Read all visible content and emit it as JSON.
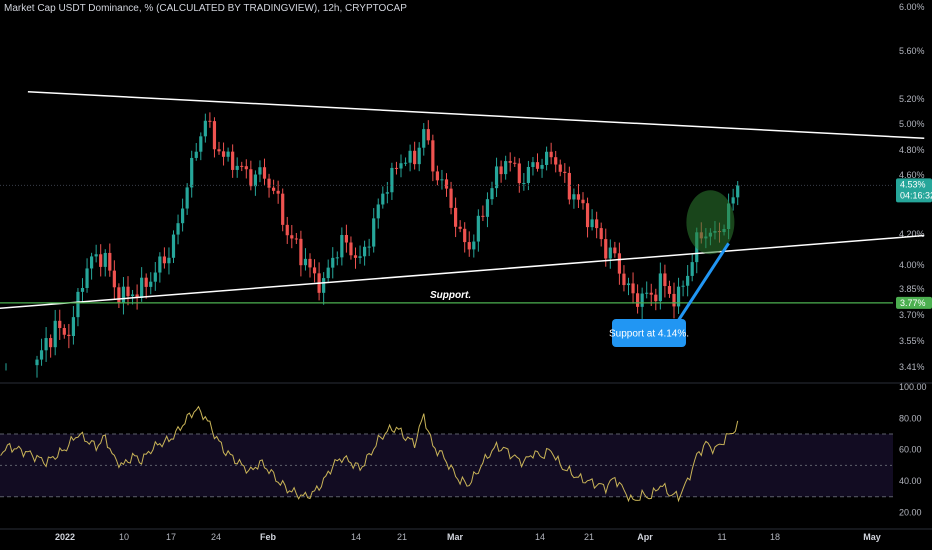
{
  "header": {
    "title": "Market Cap USDT Dominance, % (CALCULATED BY TRADINGVIEW), 12h, CRYPTOCAP"
  },
  "colors": {
    "background": "#000000",
    "up": "#26a69a",
    "down": "#ef5350",
    "rsi_line": "#c9b458",
    "support_line": "#4caf50",
    "trend_line": "#ffffff",
    "callout": "#2196f3",
    "highlight": "#2e7d32"
  },
  "chart_data": [
    {
      "type": "candlestick",
      "ylim": [
        3.32,
        6.0
      ],
      "y_ticks": [
        "6.00%",
        "5.60%",
        "5.20%",
        "5.00%",
        "4.80%",
        "4.60%",
        "4.20%",
        "4.00%",
        "3.85%",
        "3.70%",
        "3.55%",
        "3.41%"
      ],
      "x_ticks": [
        {
          "label": "2022",
          "bold": true
        },
        {
          "label": "10"
        },
        {
          "label": "17"
        },
        {
          "label": "24"
        },
        {
          "label": "Feb",
          "bold": true
        },
        {
          "label": "14"
        },
        {
          "label": "21"
        },
        {
          "label": "Mar",
          "bold": true
        },
        {
          "label": "14"
        },
        {
          "label": "21"
        },
        {
          "label": "Apr",
          "bold": true
        },
        {
          "label": "11"
        },
        {
          "label": "18"
        },
        {
          "label": "May",
          "bold": true
        }
      ],
      "price_path": [
        [
          0,
          3.42
        ],
        [
          2,
          3.55
        ],
        [
          4,
          3.62
        ],
        [
          6,
          3.6
        ],
        [
          8,
          3.64
        ],
        [
          9,
          3.82
        ],
        [
          11,
          3.98
        ],
        [
          13,
          4.06
        ],
        [
          15,
          4.04
        ],
        [
          17,
          3.86
        ],
        [
          19,
          3.8
        ],
        [
          21,
          3.83
        ],
        [
          23,
          3.85
        ],
        [
          25,
          3.92
        ],
        [
          27,
          4.0
        ],
        [
          29,
          4.08
        ],
        [
          31,
          4.25
        ],
        [
          33,
          4.55
        ],
        [
          35,
          4.8
        ],
        [
          37,
          5.05
        ],
        [
          39,
          4.85
        ],
        [
          41,
          4.75
        ],
        [
          43,
          4.7
        ],
        [
          45,
          4.65
        ],
        [
          47,
          4.58
        ],
        [
          49,
          4.62
        ],
        [
          51,
          4.55
        ],
        [
          53,
          4.42
        ],
        [
          55,
          4.2
        ],
        [
          57,
          4.12
        ],
        [
          59,
          4.02
        ],
        [
          61,
          3.92
        ],
        [
          63,
          3.88
        ],
        [
          65,
          4.05
        ],
        [
          67,
          4.15
        ],
        [
          69,
          4.1
        ],
        [
          71,
          4.02
        ],
        [
          73,
          4.18
        ],
        [
          75,
          4.38
        ],
        [
          77,
          4.55
        ],
        [
          79,
          4.65
        ],
        [
          81,
          4.75
        ],
        [
          83,
          4.7
        ],
        [
          85,
          4.98
        ],
        [
          87,
          4.65
        ],
        [
          89,
          4.55
        ],
        [
          91,
          4.4
        ],
        [
          93,
          4.18
        ],
        [
          95,
          4.12
        ],
        [
          97,
          4.25
        ],
        [
          99,
          4.45
        ],
        [
          101,
          4.6
        ],
        [
          103,
          4.72
        ],
        [
          105,
          4.65
        ],
        [
          107,
          4.55
        ],
        [
          109,
          4.7
        ],
        [
          111,
          4.68
        ],
        [
          113,
          4.78
        ],
        [
          115,
          4.62
        ],
        [
          117,
          4.5
        ],
        [
          119,
          4.42
        ],
        [
          121,
          4.32
        ],
        [
          123,
          4.22
        ],
        [
          125,
          4.1
        ],
        [
          127,
          4.05
        ],
        [
          129,
          3.9
        ],
        [
          131,
          3.8
        ],
        [
          133,
          3.81
        ],
        [
          135,
          3.8
        ],
        [
          137,
          3.9
        ],
        [
          139,
          3.82
        ],
        [
          141,
          3.8
        ],
        [
          143,
          3.95
        ],
        [
          145,
          4.15
        ],
        [
          147,
          4.22
        ],
        [
          149,
          4.18
        ],
        [
          151,
          4.28
        ],
        [
          153,
          4.44
        ],
        [
          154,
          4.53
        ]
      ],
      "trend_lines": [
        {
          "name": "resistance",
          "from": [
            -2,
            5.26
          ],
          "to": [
            195,
            4.89
          ]
        },
        {
          "name": "ascending-support",
          "from": [
            -22,
            3.71
          ],
          "to": [
            195,
            4.19
          ]
        }
      ],
      "horizontal_lines": [
        {
          "name": "support",
          "value": 3.77,
          "label": "Support."
        }
      ],
      "annotations": [
        {
          "text": "Support at 4.14%.",
          "value": 4.14
        },
        {
          "text": "Support.",
          "value": 3.77
        }
      ],
      "price_tags": [
        {
          "value": 4.53,
          "label": "4.53%",
          "sublabel": "04:16:32",
          "color": "#26a69a"
        },
        {
          "value": 3.77,
          "label": "3.77%",
          "color": "#4caf50"
        }
      ]
    },
    {
      "type": "line",
      "name": "RSI",
      "ylim": [
        12,
        100
      ],
      "y_ticks": [
        "100.00",
        "80.00",
        "60.00",
        "40.00",
        "20.00"
      ],
      "bands": [
        70,
        50,
        30
      ],
      "rsi_path": [
        [
          -30,
          48
        ],
        [
          -26,
          58
        ],
        [
          -22,
          52
        ],
        [
          -18,
          60
        ],
        [
          -14,
          64
        ],
        [
          -10,
          55
        ],
        [
          -6,
          62
        ],
        [
          -2,
          58
        ],
        [
          2,
          52
        ],
        [
          6,
          60
        ],
        [
          9,
          70
        ],
        [
          11,
          66
        ],
        [
          13,
          62
        ],
        [
          15,
          68
        ],
        [
          17,
          54
        ],
        [
          19,
          50
        ],
        [
          21,
          56
        ],
        [
          23,
          53
        ],
        [
          25,
          60
        ],
        [
          27,
          64
        ],
        [
          29,
          66
        ],
        [
          31,
          72
        ],
        [
          33,
          80
        ],
        [
          35,
          86
        ],
        [
          37,
          81
        ],
        [
          39,
          70
        ],
        [
          41,
          60
        ],
        [
          43,
          55
        ],
        [
          45,
          50
        ],
        [
          47,
          46
        ],
        [
          49,
          52
        ],
        [
          51,
          47
        ],
        [
          53,
          40
        ],
        [
          55,
          35
        ],
        [
          57,
          32
        ],
        [
          59,
          30
        ],
        [
          61,
          33
        ],
        [
          63,
          40
        ],
        [
          65,
          50
        ],
        [
          67,
          55
        ],
        [
          69,
          52
        ],
        [
          71,
          48
        ],
        [
          73,
          56
        ],
        [
          75,
          66
        ],
        [
          77,
          72
        ],
        [
          79,
          74
        ],
        [
          81,
          68
        ],
        [
          83,
          64
        ],
        [
          85,
          82
        ],
        [
          87,
          62
        ],
        [
          89,
          57
        ],
        [
          91,
          48
        ],
        [
          93,
          40
        ],
        [
          95,
          38
        ],
        [
          97,
          47
        ],
        [
          99,
          56
        ],
        [
          101,
          62
        ],
        [
          103,
          60
        ],
        [
          105,
          55
        ],
        [
          107,
          52
        ],
        [
          109,
          58
        ],
        [
          111,
          56
        ],
        [
          113,
          60
        ],
        [
          115,
          50
        ],
        [
          117,
          46
        ],
        [
          119,
          42
        ],
        [
          121,
          40
        ],
        [
          123,
          38
        ],
        [
          125,
          36
        ],
        [
          127,
          42
        ],
        [
          129,
          34
        ],
        [
          131,
          27
        ],
        [
          133,
          31
        ],
        [
          135,
          30
        ],
        [
          137,
          38
        ],
        [
          139,
          32
        ],
        [
          141,
          30
        ],
        [
          143,
          40
        ],
        [
          145,
          56
        ],
        [
          147,
          64
        ],
        [
          149,
          60
        ],
        [
          151,
          66
        ],
        [
          153,
          72
        ],
        [
          154,
          75
        ]
      ]
    }
  ]
}
